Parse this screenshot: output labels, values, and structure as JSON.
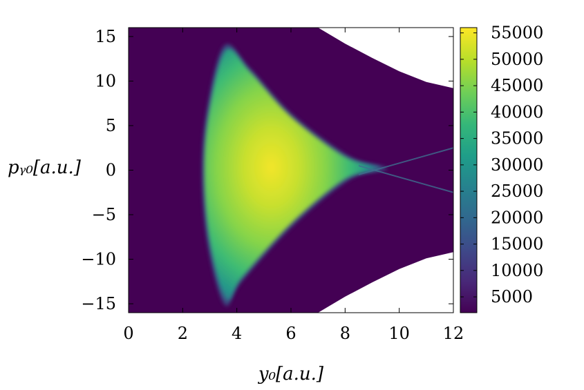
{
  "chart_data": {
    "type": "heatmap",
    "title": "",
    "xlabel": "y₀[a.u.]",
    "ylabel": "pᵧ₀[a.u.]",
    "xlim": [
      0,
      12
    ],
    "ylim": [
      -16,
      16
    ],
    "x_ticks": [
      "0",
      "2",
      "4",
      "6",
      "8",
      "10",
      "12"
    ],
    "x_tick_values": [
      0,
      2,
      4,
      6,
      8,
      10,
      12
    ],
    "y_ticks": [
      "15",
      "10",
      "5",
      "0",
      "−5",
      "−10",
      "−15"
    ],
    "y_tick_values": [
      15,
      10,
      5,
      0,
      -5,
      -10,
      -15
    ],
    "colorbar": {
      "range": [
        2000,
        56000
      ],
      "ticks": [
        "55000",
        "50000",
        "45000",
        "40000",
        "35000",
        "30000",
        "25000",
        "20000",
        "15000",
        "10000",
        "5000"
      ],
      "tick_values": [
        55000,
        50000,
        45000,
        40000,
        35000,
        30000,
        25000,
        20000,
        15000,
        10000,
        5000
      ],
      "colormap": [
        "#440154",
        "#482878",
        "#3e4989",
        "#31688e",
        "#26828e",
        "#1f9e89",
        "#35b779",
        "#6ece58",
        "#b5de2b",
        "#fde725"
      ]
    },
    "background_value": 2000,
    "domain_boundary": {
      "description": "white region outside the hyperbola-like boundary at upper and lower right",
      "upper": [
        [
          7.0,
          16
        ],
        [
          8.0,
          14.2
        ],
        [
          9.0,
          12.6
        ],
        [
          10.0,
          11.1
        ],
        [
          11.0,
          9.9
        ],
        [
          12.0,
          9.2
        ]
      ],
      "lower": [
        [
          7.0,
          -16
        ],
        [
          8.0,
          -14.2
        ],
        [
          9.0,
          -12.6
        ],
        [
          10.0,
          -11.1
        ],
        [
          11.0,
          -9.9
        ],
        [
          12.0,
          -9.2
        ]
      ]
    },
    "high_density_region": {
      "outline": [
        [
          3.6,
          13.5
        ],
        [
          3.0,
          7
        ],
        [
          2.8,
          0
        ],
        [
          3.0,
          -8
        ],
        [
          3.6,
          -14.5
        ],
        [
          4.2,
          -12
        ],
        [
          6.0,
          -6
        ],
        [
          8.0,
          -1
        ],
        [
          9.3,
          0.2
        ],
        [
          8.0,
          1.5
        ],
        [
          6.0,
          6
        ],
        [
          4.5,
          11
        ]
      ],
      "peak": [
        4.6,
        0.5
      ],
      "peak_value": 52000
    }
  }
}
